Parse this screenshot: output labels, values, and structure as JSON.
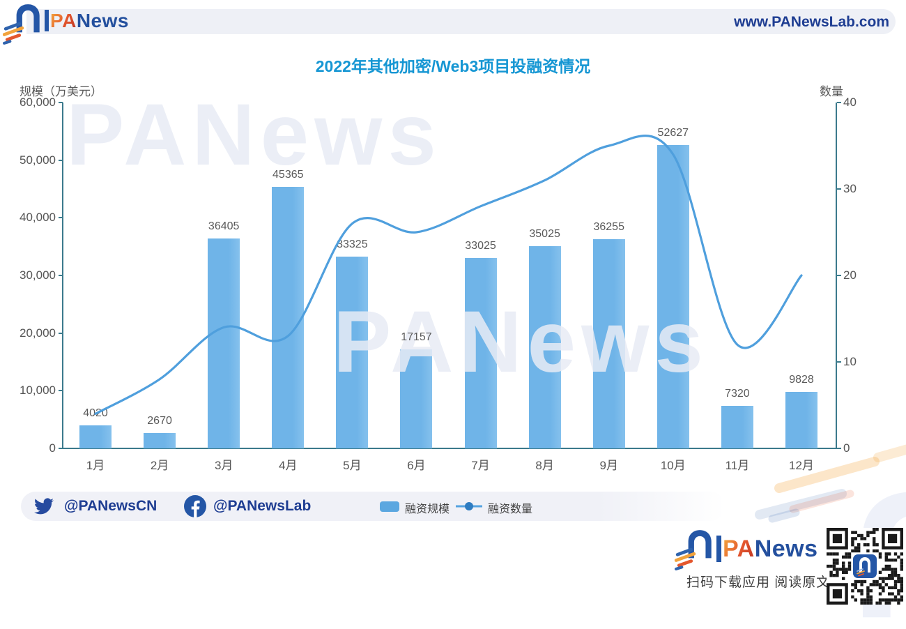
{
  "header": {
    "brand_pa": "PA",
    "brand_news": "News",
    "website": "www.PANewsLab.com"
  },
  "title": "2022年其他加密/Web3项目投融资情况",
  "chart_data": {
    "type": "bar+line combo",
    "title": "2022年其他加密/Web3项目投融资情况",
    "categories": [
      "1月",
      "2月",
      "3月",
      "4月",
      "5月",
      "6月",
      "7月",
      "8月",
      "9月",
      "10月",
      "11月",
      "12月"
    ],
    "series": [
      {
        "name": "融资规模",
        "type": "bar",
        "axis": "left",
        "unit": "万美元",
        "values": [
          4020,
          2670,
          36405,
          45365,
          33325,
          17157,
          33025,
          35025,
          36255,
          52627,
          7320,
          9828
        ]
      },
      {
        "name": "融资数量",
        "type": "line",
        "axis": "right",
        "values": [
          4,
          8,
          14,
          13,
          26,
          25,
          28,
          31,
          35,
          34,
          12,
          20
        ]
      }
    ],
    "left_axis": {
      "title": "规模（万美元）",
      "min": 0,
      "max": 60000,
      "tick_labels": [
        "60,000",
        "50,000",
        "40,000",
        "30,000",
        "20,000",
        "10,000",
        "0"
      ]
    },
    "right_axis": {
      "title": "数量",
      "min": 0,
      "max": 40,
      "tick_labels": [
        "40",
        "30",
        "20",
        "10",
        "0"
      ]
    },
    "grid": false,
    "legend_position": "bottom",
    "colors": {
      "bar": "#6fb4e8",
      "line": "#4f9fdd",
      "legend_dot": "#2e7cc1",
      "axis": "#3b7a8c",
      "tick_text": "#595959",
      "title": "#1596d3"
    }
  },
  "footer": {
    "twitter_handle": "@PANewsCN",
    "facebook_handle": "@PANewsLab"
  },
  "bottom": {
    "caption": "扫码下载应用 阅读原文"
  },
  "watermark": {
    "text": "PANews"
  }
}
